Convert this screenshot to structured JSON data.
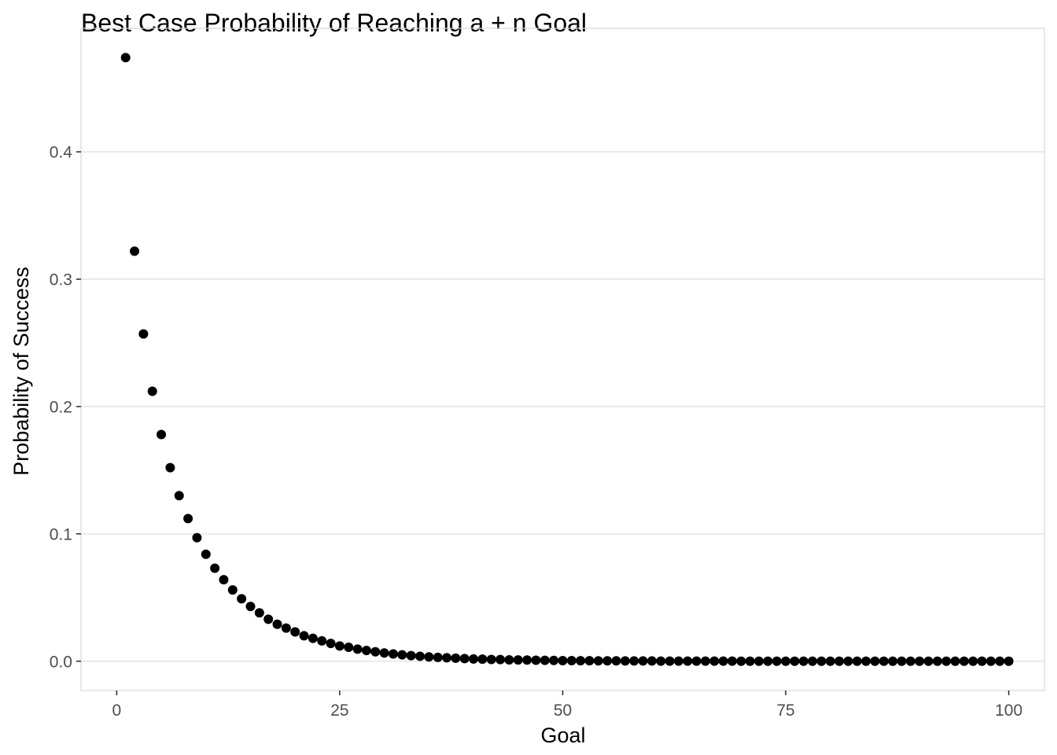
{
  "chart_data": {
    "type": "scatter",
    "title": "Best Case Probability of Reaching a + n Goal",
    "xlabel": "Goal",
    "ylabel": "Probability of Success",
    "xlim": [
      -4,
      104
    ],
    "ylim": [
      -0.023,
      0.497
    ],
    "x_ticks": [
      0,
      25,
      50,
      75,
      100
    ],
    "x_tick_labels": [
      "0",
      "25",
      "50",
      "75",
      "100"
    ],
    "y_ticks": [
      0.0,
      0.1,
      0.2,
      0.3,
      0.4
    ],
    "y_tick_labels": [
      "0.0",
      "0.1",
      "0.2",
      "0.3",
      "0.4"
    ],
    "grid": "horizontal major gridlines",
    "legend": "none",
    "point_color": "#000000",
    "panel_border_color": "#d9d9d9",
    "grid_color": "#ebebeb",
    "series": [
      {
        "x": [
          1,
          2,
          3,
          4,
          5,
          6,
          7,
          8,
          9,
          10,
          11,
          12,
          13,
          14,
          15,
          16,
          17,
          18,
          19,
          20,
          21,
          22,
          23,
          24,
          25,
          26,
          27,
          28,
          29,
          30,
          31,
          32,
          33,
          34,
          35,
          36,
          37,
          38,
          39,
          40,
          41,
          42,
          43,
          44,
          45,
          46,
          47,
          48,
          49,
          50,
          51,
          52,
          53,
          54,
          55,
          56,
          57,
          58,
          59,
          60,
          61,
          62,
          63,
          64,
          65,
          66,
          67,
          68,
          69,
          70,
          71,
          72,
          73,
          74,
          75,
          76,
          77,
          78,
          79,
          80,
          81,
          82,
          83,
          84,
          85,
          86,
          87,
          88,
          89,
          90,
          91,
          92,
          93,
          94,
          95,
          96,
          97,
          98,
          99,
          100
        ],
        "y": [
          0.474,
          0.322,
          0.257,
          0.212,
          0.178,
          0.152,
          0.13,
          0.112,
          0.097,
          0.084,
          0.073,
          0.064,
          0.056,
          0.049,
          0.043,
          0.038,
          0.033,
          0.029,
          0.026,
          0.023,
          0.02,
          0.018,
          0.016,
          0.014,
          0.012,
          0.011,
          0.0095,
          0.0084,
          0.0074,
          0.0065,
          0.0057,
          0.005,
          0.0044,
          0.0039,
          0.0034,
          0.003,
          0.0027,
          0.0024,
          0.0021,
          0.0018,
          0.0016,
          0.0014,
          0.0013,
          0.0011,
          0.001,
          0.0009,
          0.0008,
          0.0007,
          0.0006,
          0.0005,
          0.0005,
          0.0004,
          0.0004,
          0.0003,
          0.0003,
          0.0003,
          0.0002,
          0.0002,
          0.0002,
          0.0002,
          0.0001,
          0.0001,
          0.0001,
          0.0001,
          0.0001,
          0.0001,
          0.0001,
          0.0001,
          0.0001,
          0,
          0,
          0,
          0,
          0,
          0,
          0,
          0,
          0,
          0,
          0,
          0,
          0,
          0,
          0,
          0,
          0,
          0,
          0,
          0,
          0,
          0,
          0,
          0,
          0,
          0,
          0,
          0,
          0,
          0,
          0
        ]
      }
    ]
  }
}
